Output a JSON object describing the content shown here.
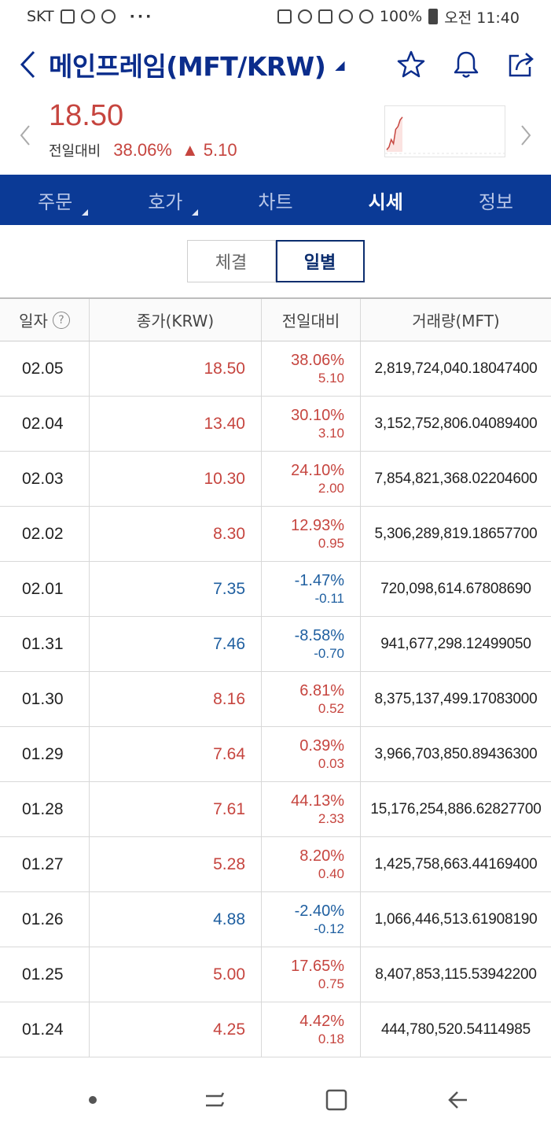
{
  "status_bar": {
    "carrier": "SKT",
    "battery": "100%",
    "time": "오전 11:40",
    "dots": "···"
  },
  "header": {
    "title": "메인프레임(MFT/KRW)",
    "caret": "◢"
  },
  "price": {
    "current": "18.50",
    "change_label": "전일대비",
    "change_pct": "38.06%",
    "change_amt": "▲ 5.10"
  },
  "mini_chart": {
    "values": [
      0.05,
      0.12,
      0.3,
      0.2,
      0.55,
      0.62,
      0.78,
      0.85
    ]
  },
  "main_tabs": [
    {
      "label": "주문",
      "has_caret": true
    },
    {
      "label": "호가",
      "has_caret": true
    },
    {
      "label": "차트",
      "has_caret": false
    },
    {
      "label": "시세",
      "has_caret": false,
      "active": true
    },
    {
      "label": "정보",
      "has_caret": false
    }
  ],
  "sub_tabs": [
    {
      "label": "체결"
    },
    {
      "label": "일별",
      "active": true
    }
  ],
  "table": {
    "headers": {
      "date": "일자",
      "close": "종가(KRW)",
      "diff": "전일대비",
      "volume": "거래량(MFT)"
    },
    "help_glyph": "?",
    "rows": [
      {
        "date": "02.05",
        "close": "18.50",
        "pct": "38.06%",
        "amt": "5.10",
        "volume": "2,819,724,040.18047400",
        "dir": "up"
      },
      {
        "date": "02.04",
        "close": "13.40",
        "pct": "30.10%",
        "amt": "3.10",
        "volume": "3,152,752,806.04089400",
        "dir": "up"
      },
      {
        "date": "02.03",
        "close": "10.30",
        "pct": "24.10%",
        "amt": "2.00",
        "volume": "7,854,821,368.02204600",
        "dir": "up"
      },
      {
        "date": "02.02",
        "close": "8.30",
        "pct": "12.93%",
        "amt": "0.95",
        "volume": "5,306,289,819.18657700",
        "dir": "up"
      },
      {
        "date": "02.01",
        "close": "7.35",
        "pct": "-1.47%",
        "amt": "-0.11",
        "volume": "720,098,614.67808690",
        "dir": "down"
      },
      {
        "date": "01.31",
        "close": "7.46",
        "pct": "-8.58%",
        "amt": "-0.70",
        "volume": "941,677,298.12499050",
        "dir": "down"
      },
      {
        "date": "01.30",
        "close": "8.16",
        "pct": "6.81%",
        "amt": "0.52",
        "volume": "8,375,137,499.17083000",
        "dir": "up"
      },
      {
        "date": "01.29",
        "close": "7.64",
        "pct": "0.39%",
        "amt": "0.03",
        "volume": "3,966,703,850.89436300",
        "dir": "up"
      },
      {
        "date": "01.28",
        "close": "7.61",
        "pct": "44.13%",
        "amt": "2.33",
        "volume": "15,176,254,886.62827700",
        "dir": "up"
      },
      {
        "date": "01.27",
        "close": "5.28",
        "pct": "8.20%",
        "amt": "0.40",
        "volume": "1,425,758,663.44169400",
        "dir": "up"
      },
      {
        "date": "01.26",
        "close": "4.88",
        "pct": "-2.40%",
        "amt": "-0.12",
        "volume": "1,066,446,513.61908190",
        "dir": "down"
      },
      {
        "date": "01.25",
        "close": "5.00",
        "pct": "17.65%",
        "amt": "0.75",
        "volume": "8,407,853,115.53942200",
        "dir": "up"
      },
      {
        "date": "01.24",
        "close": "4.25",
        "pct": "4.42%",
        "amt": "0.18",
        "volume": "444,780,520.54114985",
        "dir": "up"
      }
    ]
  },
  "colors": {
    "up": "#c6453f",
    "down": "#1f5fa0",
    "brand": "#0b3a96"
  }
}
